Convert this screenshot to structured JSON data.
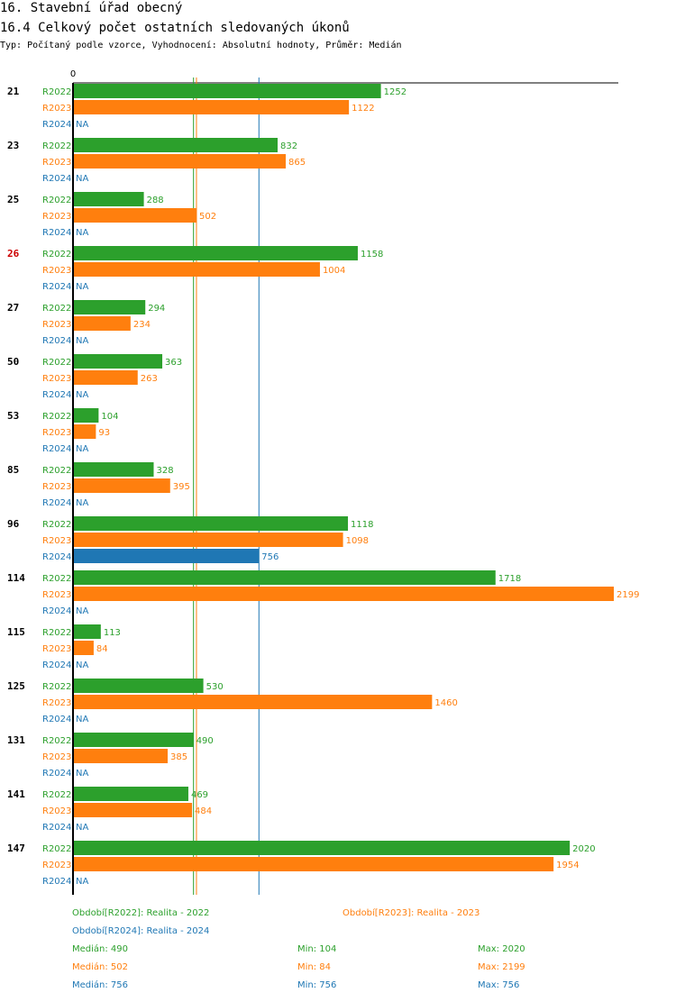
{
  "title": "16. Stavební úřad obecný",
  "subtitle": "16.4 Celkový počet ostatních sledovaných úkonů",
  "type_line": "Typ: Počítaný podle vzorce, Vyhodnocení: Absolutní hodnoty, Průměr: Medián",
  "colors": {
    "R2022": "#2ca02c",
    "R2023": "#ff7f0e",
    "R2024": "#1f77b4",
    "highlight": "#cc0000"
  },
  "chart_data": {
    "type": "bar",
    "orientation": "horizontal",
    "axis_zero_label": "0",
    "highlighted_category": "26",
    "categories": [
      "21",
      "23",
      "25",
      "26",
      "27",
      "50",
      "53",
      "85",
      "96",
      "114",
      "115",
      "125",
      "131",
      "141",
      "147"
    ],
    "series": [
      {
        "name": "R2022",
        "values": [
          1252,
          832,
          288,
          1158,
          294,
          363,
          104,
          328,
          1118,
          1718,
          113,
          530,
          490,
          469,
          2020
        ]
      },
      {
        "name": "R2023",
        "values": [
          1122,
          865,
          502,
          1004,
          234,
          263,
          93,
          395,
          1098,
          2199,
          84,
          1460,
          385,
          484,
          1954
        ]
      },
      {
        "name": "R2024",
        "values": [
          null,
          null,
          null,
          null,
          null,
          null,
          null,
          null,
          756,
          null,
          null,
          null,
          null,
          null,
          null
        ]
      }
    ],
    "na_label": "NA",
    "xlim": [
      0,
      2199
    ],
    "median_lines": {
      "R2022": 490,
      "R2023": 502,
      "R2024": 756
    }
  },
  "legend": {
    "r2022": "Období[R2022]: Realita - 2022",
    "r2023": "Období[R2023]: Realita - 2023",
    "r2024": "Období[R2024]: Realita - 2024"
  },
  "stats": [
    {
      "series": "R2022",
      "median": "Medián: 490",
      "min": "Min: 104",
      "max": "Max: 2020"
    },
    {
      "series": "R2023",
      "median": "Medián: 502",
      "min": "Min: 84",
      "max": "Max: 2199"
    },
    {
      "series": "R2024",
      "median": "Medián: 756",
      "min": "Min: 756",
      "max": "Max: 756"
    }
  ]
}
